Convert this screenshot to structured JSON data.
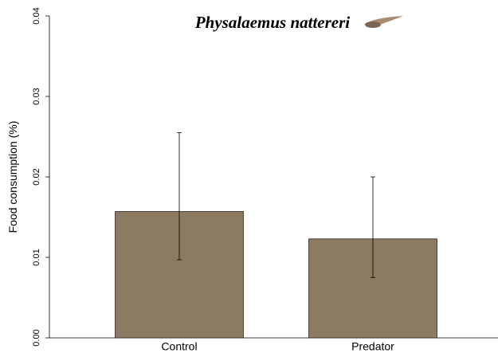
{
  "chart_data": {
    "type": "bar",
    "title": "Physalaemus nattereri",
    "y_label": "Food consumption (%)",
    "categories": [
      "Control",
      "Predator"
    ],
    "values": [
      0.0157,
      0.0123
    ],
    "error_low": [
      0.0097,
      0.0075
    ],
    "error_high": [
      0.0255,
      0.02
    ],
    "color": "#8c7a62",
    "ylim": [
      0,
      0.04
    ],
    "yticks": [
      {
        "value": 0,
        "label": "0.00"
      },
      0.01,
      0.02,
      0.03,
      0.04
    ]
  }
}
